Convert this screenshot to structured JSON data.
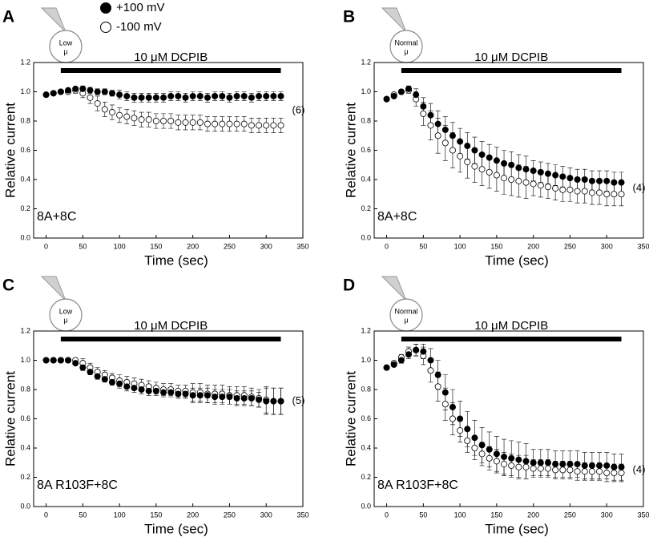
{
  "chart_data": [
    {
      "type": "scatter",
      "panel_label": "A",
      "pipette_label": [
        "Low",
        "μ"
      ],
      "drug_bar": {
        "label": "10 μM DCPIB",
        "start": 20,
        "end": 320
      },
      "construct": "8A+8C",
      "annotation": "(6)",
      "xlabel": "Time (sec)",
      "ylabel": "Relative current",
      "x": [
        0,
        10,
        20,
        30,
        40,
        50,
        60,
        70,
        80,
        90,
        100,
        110,
        120,
        130,
        140,
        150,
        160,
        170,
        180,
        190,
        200,
        210,
        220,
        230,
        240,
        250,
        260,
        270,
        280,
        290,
        300,
        310,
        320
      ],
      "xlim": [
        -17,
        350
      ],
      "xticks": [
        0,
        50,
        100,
        150,
        200,
        250,
        300,
        350
      ],
      "ylim": [
        0,
        1.2
      ],
      "yticks": [
        {
          "value": 0,
          "label": "0.0"
        },
        {
          "value": 0.2,
          "label": "0.2"
        },
        {
          "value": 0.4,
          "label": "0.4"
        },
        {
          "value": 0.6,
          "label": "0.6"
        },
        {
          "value": 0.8,
          "label": "0.8"
        },
        {
          "value": 1,
          "label": "1.0"
        },
        {
          "value": 1.2,
          "label": "1.2"
        }
      ],
      "series": [
        {
          "name": "-100 mV",
          "color": "#000000",
          "fill": "#ffffff",
          "values": [
            0.98,
            0.99,
            1.0,
            1.0,
            1.01,
            0.99,
            0.96,
            0.92,
            0.88,
            0.86,
            0.84,
            0.83,
            0.82,
            0.81,
            0.81,
            0.8,
            0.8,
            0.8,
            0.79,
            0.79,
            0.79,
            0.79,
            0.78,
            0.78,
            0.78,
            0.78,
            0.78,
            0.78,
            0.77,
            0.77,
            0.77,
            0.77,
            0.77
          ],
          "errors": [
            0.01,
            0.01,
            0.01,
            0.01,
            0.02,
            0.03,
            0.04,
            0.05,
            0.05,
            0.05,
            0.05,
            0.05,
            0.05,
            0.05,
            0.05,
            0.05,
            0.05,
            0.05,
            0.05,
            0.05,
            0.05,
            0.05,
            0.05,
            0.05,
            0.05,
            0.05,
            0.05,
            0.05,
            0.05,
            0.05,
            0.05,
            0.05,
            0.05
          ]
        },
        {
          "name": "+100 mV",
          "color": "#000000",
          "fill": "#000000",
          "values": [
            0.98,
            0.99,
            1.0,
            1.01,
            1.02,
            1.02,
            1.01,
            1.0,
            1.0,
            0.99,
            0.98,
            0.97,
            0.96,
            0.96,
            0.96,
            0.96,
            0.96,
            0.97,
            0.97,
            0.96,
            0.97,
            0.97,
            0.96,
            0.97,
            0.97,
            0.96,
            0.97,
            0.97,
            0.96,
            0.97,
            0.97,
            0.97,
            0.97
          ],
          "errors": [
            0.01,
            0.01,
            0.01,
            0.01,
            0.01,
            0.02,
            0.02,
            0.02,
            0.02,
            0.02,
            0.03,
            0.03,
            0.03,
            0.03,
            0.03,
            0.03,
            0.03,
            0.03,
            0.03,
            0.03,
            0.03,
            0.03,
            0.03,
            0.03,
            0.03,
            0.03,
            0.03,
            0.03,
            0.03,
            0.03,
            0.03,
            0.03,
            0.03
          ]
        }
      ]
    },
    {
      "type": "scatter",
      "panel_label": "B",
      "pipette_label": [
        "Normal",
        "μ"
      ],
      "drug_bar": {
        "label": "10 μM DCPIB",
        "start": 20,
        "end": 320
      },
      "construct": "8A+8C",
      "annotation": "(4)",
      "xlabel": "Time (sec)",
      "ylabel": "Relative current",
      "x": [
        0,
        10,
        20,
        30,
        40,
        50,
        60,
        70,
        80,
        90,
        100,
        110,
        120,
        130,
        140,
        150,
        160,
        170,
        180,
        190,
        200,
        210,
        220,
        230,
        240,
        250,
        260,
        270,
        280,
        290,
        300,
        310,
        320
      ],
      "xlim": [
        -17,
        350
      ],
      "xticks": [
        0,
        50,
        100,
        150,
        200,
        250,
        300,
        350
      ],
      "ylim": [
        0,
        1.2
      ],
      "yticks": [
        {
          "value": 0,
          "label": "0.0"
        },
        {
          "value": 0.2,
          "label": "0.2"
        },
        {
          "value": 0.4,
          "label": "0.4"
        },
        {
          "value": 0.6,
          "label": "0.6"
        },
        {
          "value": 0.8,
          "label": "0.8"
        },
        {
          "value": 1,
          "label": "1.0"
        },
        {
          "value": 1.2,
          "label": "1.2"
        }
      ],
      "series": [
        {
          "color": "#000000",
          "fill": "#ffffff",
          "values": [
            0.95,
            0.98,
            1.0,
            1.01,
            0.95,
            0.85,
            0.77,
            0.7,
            0.65,
            0.6,
            0.56,
            0.52,
            0.49,
            0.47,
            0.45,
            0.43,
            0.41,
            0.4,
            0.39,
            0.38,
            0.37,
            0.36,
            0.35,
            0.34,
            0.33,
            0.33,
            0.32,
            0.32,
            0.31,
            0.31,
            0.3,
            0.3,
            0.3
          ],
          "errors": [
            0.01,
            0.01,
            0.01,
            0.02,
            0.05,
            0.08,
            0.1,
            0.12,
            0.12,
            0.12,
            0.11,
            0.11,
            0.11,
            0.11,
            0.11,
            0.11,
            0.11,
            0.11,
            0.11,
            0.11,
            0.08,
            0.08,
            0.08,
            0.08,
            0.08,
            0.08,
            0.08,
            0.08,
            0.08,
            0.08,
            0.08,
            0.08,
            0.08
          ]
        },
        {
          "color": "#000000",
          "fill": "#000000",
          "values": [
            0.95,
            0.97,
            1.0,
            1.02,
            0.98,
            0.9,
            0.84,
            0.78,
            0.74,
            0.7,
            0.66,
            0.63,
            0.6,
            0.57,
            0.55,
            0.53,
            0.51,
            0.5,
            0.48,
            0.47,
            0.46,
            0.45,
            0.44,
            0.43,
            0.42,
            0.41,
            0.4,
            0.4,
            0.39,
            0.39,
            0.39,
            0.38,
            0.38
          ],
          "errors": [
            0.01,
            0.01,
            0.01,
            0.02,
            0.04,
            0.06,
            0.08,
            0.09,
            0.09,
            0.09,
            0.09,
            0.09,
            0.09,
            0.09,
            0.09,
            0.09,
            0.09,
            0.09,
            0.09,
            0.09,
            0.07,
            0.07,
            0.07,
            0.07,
            0.07,
            0.07,
            0.07,
            0.07,
            0.07,
            0.07,
            0.07,
            0.07,
            0.07
          ]
        }
      ]
    },
    {
      "type": "scatter",
      "panel_label": "C",
      "pipette_label": [
        "Low",
        "μ"
      ],
      "drug_bar": {
        "label": "10 μM DCPIB",
        "start": 20,
        "end": 320
      },
      "construct": "8A R103F+8C",
      "annotation": "(5)",
      "xlabel": "Time (sec)",
      "ylabel": "Relative current",
      "x": [
        0,
        10,
        20,
        30,
        40,
        50,
        60,
        70,
        80,
        90,
        100,
        110,
        120,
        130,
        140,
        150,
        160,
        170,
        180,
        190,
        200,
        210,
        220,
        230,
        240,
        250,
        260,
        270,
        280,
        290,
        300,
        310,
        320
      ],
      "xlim": [
        -17,
        350
      ],
      "xticks": [
        0,
        50,
        100,
        150,
        200,
        250,
        300,
        350
      ],
      "ylim": [
        0,
        1.2
      ],
      "yticks": [
        {
          "value": 0,
          "label": "0.0"
        },
        {
          "value": 0.2,
          "label": "0.2"
        },
        {
          "value": 0.4,
          "label": "0.4"
        },
        {
          "value": 0.6,
          "label": "0.6"
        },
        {
          "value": 0.8,
          "label": "0.8"
        },
        {
          "value": 1,
          "label": "1.0"
        },
        {
          "value": 1.2,
          "label": "1.2"
        }
      ],
      "series": [
        {
          "color": "#000000",
          "fill": "#ffffff",
          "values": [
            1.0,
            1.0,
            1.0,
            1.0,
            1.0,
            0.98,
            0.95,
            0.92,
            0.9,
            0.88,
            0.86,
            0.85,
            0.84,
            0.83,
            0.82,
            0.81,
            0.8,
            0.8,
            0.79,
            0.79,
            0.78,
            0.78,
            0.77,
            0.77,
            0.77,
            0.76,
            0.76,
            0.76,
            0.75,
            0.74,
            0.73,
            0.72,
            0.72
          ],
          "errors": [
            0.01,
            0.01,
            0.01,
            0.01,
            0.01,
            0.03,
            0.03,
            0.03,
            0.03,
            0.03,
            0.04,
            0.04,
            0.04,
            0.04,
            0.04,
            0.04,
            0.04,
            0.04,
            0.04,
            0.04,
            0.06,
            0.06,
            0.06,
            0.06,
            0.06,
            0.06,
            0.06,
            0.06,
            0.06,
            0.06,
            0.09,
            0.09,
            0.09
          ]
        },
        {
          "color": "#000000",
          "fill": "#000000",
          "values": [
            1.0,
            1.0,
            1.0,
            1.0,
            0.98,
            0.95,
            0.92,
            0.89,
            0.87,
            0.85,
            0.84,
            0.82,
            0.81,
            0.8,
            0.79,
            0.79,
            0.78,
            0.78,
            0.77,
            0.77,
            0.76,
            0.76,
            0.76,
            0.75,
            0.75,
            0.75,
            0.74,
            0.74,
            0.74,
            0.73,
            0.72,
            0.72,
            0.72
          ],
          "errors": [
            0.01,
            0.01,
            0.01,
            0.01,
            0.01,
            0.02,
            0.02,
            0.02,
            0.02,
            0.02,
            0.03,
            0.03,
            0.03,
            0.03,
            0.03,
            0.03,
            0.03,
            0.03,
            0.03,
            0.03,
            0.05,
            0.05,
            0.05,
            0.05,
            0.05,
            0.05,
            0.05,
            0.05,
            0.05,
            0.05,
            0.09,
            0.09,
            0.09
          ]
        }
      ]
    },
    {
      "type": "scatter",
      "panel_label": "D",
      "pipette_label": [
        "Normal",
        "μ"
      ],
      "drug_bar": {
        "label": "10 μM DCPIB",
        "start": 20,
        "end": 320
      },
      "construct": "8A R103F+8C",
      "annotation": "(4)",
      "xlabel": "Time (sec)",
      "ylabel": "Relative current",
      "x": [
        0,
        10,
        20,
        30,
        40,
        50,
        60,
        70,
        80,
        90,
        100,
        110,
        120,
        130,
        140,
        150,
        160,
        170,
        180,
        190,
        200,
        210,
        220,
        230,
        240,
        250,
        260,
        270,
        280,
        290,
        300,
        310,
        320
      ],
      "xlim": [
        -17,
        350
      ],
      "xticks": [
        0,
        50,
        100,
        150,
        200,
        250,
        300,
        350
      ],
      "ylim": [
        0,
        1.2
      ],
      "yticks": [
        {
          "value": 0,
          "label": "0.0"
        },
        {
          "value": 0.2,
          "label": "0.2"
        },
        {
          "value": 0.4,
          "label": "0.4"
        },
        {
          "value": 0.6,
          "label": "0.6"
        },
        {
          "value": 0.8,
          "label": "0.8"
        },
        {
          "value": 1,
          "label": "1.0"
        },
        {
          "value": 1.2,
          "label": "1.2"
        }
      ],
      "series": [
        {
          "color": "#000000",
          "fill": "#ffffff",
          "values": [
            0.95,
            0.98,
            1.02,
            1.06,
            1.07,
            1.03,
            0.93,
            0.82,
            0.7,
            0.6,
            0.52,
            0.45,
            0.4,
            0.36,
            0.33,
            0.31,
            0.29,
            0.28,
            0.27,
            0.27,
            0.26,
            0.26,
            0.26,
            0.25,
            0.25,
            0.25,
            0.24,
            0.24,
            0.24,
            0.24,
            0.23,
            0.23,
            0.23
          ],
          "errors": [
            0.01,
            0.01,
            0.02,
            0.03,
            0.04,
            0.06,
            0.08,
            0.1,
            0.11,
            0.11,
            0.08,
            0.08,
            0.08,
            0.08,
            0.08,
            0.08,
            0.08,
            0.08,
            0.08,
            0.08,
            0.06,
            0.06,
            0.06,
            0.06,
            0.06,
            0.06,
            0.06,
            0.06,
            0.06,
            0.06,
            0.06,
            0.06,
            0.06
          ]
        },
        {
          "color": "#000000",
          "fill": "#000000",
          "values": [
            0.95,
            0.97,
            1.0,
            1.04,
            1.07,
            1.06,
            1.0,
            0.9,
            0.78,
            0.68,
            0.6,
            0.53,
            0.47,
            0.42,
            0.39,
            0.36,
            0.34,
            0.33,
            0.32,
            0.31,
            0.3,
            0.3,
            0.3,
            0.29,
            0.29,
            0.29,
            0.29,
            0.28,
            0.28,
            0.28,
            0.28,
            0.27,
            0.27
          ],
          "errors": [
            0.01,
            0.01,
            0.02,
            0.03,
            0.04,
            0.05,
            0.08,
            0.1,
            0.12,
            0.12,
            0.12,
            0.12,
            0.12,
            0.12,
            0.12,
            0.12,
            0.12,
            0.12,
            0.12,
            0.12,
            0.09,
            0.09,
            0.09,
            0.09,
            0.09,
            0.09,
            0.09,
            0.09,
            0.09,
            0.09,
            0.09,
            0.09,
            0.09
          ]
        }
      ]
    }
  ]
}
